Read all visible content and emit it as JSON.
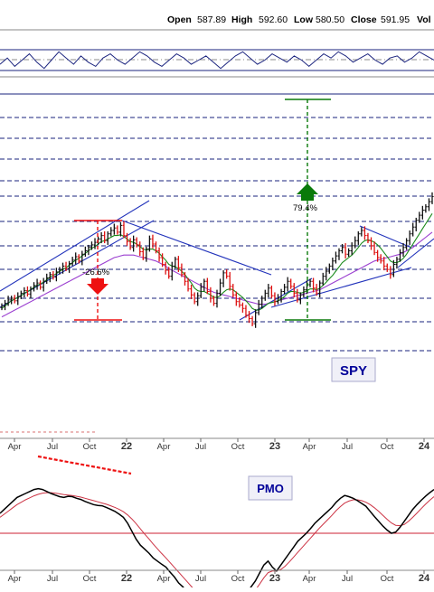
{
  "header": {
    "open_label": "Open",
    "open_value": "587.89",
    "high_label": "High",
    "high_value": "592.60",
    "low_label": "Low",
    "low_value": "580.50",
    "close_label": "Close",
    "close_value": "591.95",
    "volume_label": "Vol"
  },
  "colors": {
    "price_up": "#111111",
    "price_down": "#dd1111",
    "ma_fast": "#1a8a1a",
    "ma_slow": "#9b3fd0",
    "trendline": "#2233bb",
    "gridline": "#1a237e",
    "measure_red": "#ee1111",
    "measure_green": "#0a7a0a",
    "pmo_line": "#000000",
    "pmo_signal": "#cc3344",
    "label_box_bg": "#f0f0f8",
    "label_box_text": "#000099"
  },
  "chart_data": [
    {
      "type": "line",
      "panel": "indicator-top",
      "series": [
        {
          "values": [
            0.3,
            0.6,
            0.2,
            0.5,
            0.8,
            0.4,
            0.1,
            0.5,
            0.9,
            0.6,
            0.3,
            0.7,
            0.4,
            0.2,
            0.6,
            0.8,
            0.5,
            0.3,
            0.6,
            0.9,
            0.7,
            0.4,
            0.2,
            0.5,
            0.8,
            0.6,
            0.3,
            0.5,
            0.7,
            0.4,
            0.1,
            0.4,
            0.7,
            0.9,
            0.6,
            0.3,
            0.5,
            0.8,
            0.6,
            0.4,
            0.7,
            0.5,
            0.2,
            0.5,
            0.8,
            0.6,
            0.9,
            0.7,
            0.4,
            0.6,
            0.8,
            0.5,
            0.3,
            0.6,
            0.7,
            0.4,
            0.6,
            0.9,
            0.7,
            0.5
          ]
        }
      ],
      "grid": true
    },
    {
      "type": "candlestick",
      "panel": "price",
      "title": "SPY",
      "x_tick_labels": [
        "Apr",
        "Jul",
        "Oct",
        "22",
        "Apr",
        "Jul",
        "Oct",
        "23",
        "Apr",
        "Jul",
        "Oct",
        "24"
      ],
      "annotations": [
        "-26.6%",
        "79.4%"
      ],
      "series": [
        {
          "name": "price",
          "values": [
            383,
            386,
            390,
            392,
            389,
            394,
            398,
            401,
            397,
            403,
            407,
            410,
            405,
            412,
            416,
            420,
            417,
            423,
            426,
            430,
            427,
            433,
            437,
            441,
            436,
            444,
            448,
            452,
            455,
            458,
            462,
            466,
            460,
            468,
            472,
            475,
            470,
            478,
            466,
            459,
            452,
            461,
            455,
            447,
            440,
            450,
            462,
            456,
            448,
            440,
            432,
            425,
            418,
            430,
            438,
            428,
            420,
            412,
            403,
            396,
            388,
            395,
            405,
            412,
            400,
            392,
            386,
            398,
            410,
            422,
            418,
            406,
            396,
            388,
            384,
            380,
            372,
            368,
            362,
            375,
            385,
            392,
            398,
            404,
            395,
            388,
            392,
            400,
            405,
            412,
            406,
            398,
            390,
            396,
            402,
            408,
            412,
            404,
            398,
            410,
            418,
            424,
            430,
            436,
            442,
            448,
            452,
            444,
            448,
            454,
            460,
            468,
            472,
            466,
            460,
            454,
            446,
            440,
            436,
            430,
            426,
            420,
            432,
            438,
            446,
            452,
            460,
            468,
            476,
            484,
            490,
            496,
            500,
            506,
            512
          ]
        },
        {
          "name": "ma-50",
          "values": [
            380,
            383,
            386,
            389,
            391,
            393,
            395,
            398,
            400,
            402,
            405,
            407,
            409,
            411,
            414,
            417,
            419,
            421,
            424,
            426,
            428,
            431,
            434,
            437,
            439,
            442,
            445,
            448,
            451,
            453,
            456,
            459,
            460,
            462,
            464,
            466,
            466,
            467,
            465,
            462,
            459,
            458,
            456,
            453,
            450,
            449,
            450,
            450,
            448,
            445,
            441,
            437,
            432,
            430,
            429,
            427,
            424,
            420,
            415,
            410,
            404,
            401,
            400,
            400,
            398,
            396,
            393,
            393,
            395,
            399,
            402,
            403,
            402,
            399,
            396,
            393,
            389,
            385,
            380,
            378,
            378,
            380,
            383,
            386,
            387,
            388,
            389,
            391,
            394,
            398,
            400,
            400,
            399,
            398,
            399,
            401,
            403,
            403,
            402,
            404,
            407,
            411,
            415,
            419,
            424,
            429,
            434,
            437,
            440,
            443,
            447,
            452,
            457,
            460,
            461,
            460,
            458,
            455,
            451,
            446,
            441,
            436,
            434,
            434,
            436,
            439,
            444,
            450,
            456,
            462,
            468,
            474,
            480,
            486,
            492
          ]
        },
        {
          "name": "ma-200",
          "values": [
            370,
            372,
            374,
            376,
            378,
            380,
            382,
            384,
            386,
            388,
            390,
            392,
            394,
            396,
            398,
            400,
            402,
            404,
            406,
            408,
            410,
            412,
            414,
            416,
            418,
            420,
            422,
            424,
            426,
            428,
            430,
            432,
            434,
            436,
            438,
            440,
            441,
            442,
            443,
            443,
            443,
            443,
            442,
            441,
            440,
            439,
            438,
            437,
            436,
            434,
            432,
            430,
            427,
            425,
            423,
            421,
            419,
            417,
            415,
            413,
            411,
            409,
            407,
            405,
            403,
            401,
            399,
            398,
            397,
            396,
            395,
            394,
            393,
            392,
            391,
            390,
            389,
            388,
            387,
            386,
            385,
            385,
            385,
            386,
            387,
            388,
            389,
            390,
            391,
            392,
            393,
            394,
            395,
            396,
            397,
            398,
            399,
            400,
            401,
            402,
            404,
            406,
            408,
            410,
            412,
            414,
            416,
            418,
            420,
            422,
            424,
            426,
            428,
            430,
            432,
            434,
            436,
            437,
            438,
            439,
            440,
            441,
            442,
            443,
            444,
            446,
            448,
            450,
            452,
            455,
            458,
            461,
            464,
            467,
            470
          ]
        }
      ],
      "grid": true
    },
    {
      "type": "line",
      "panel": "pmo",
      "title": "PMO",
      "x_tick_labels": [
        "Apr",
        "Jul",
        "Oct",
        "22",
        "Apr",
        "Jul",
        "Oct",
        "23",
        "Apr",
        "Jul",
        "Oct",
        "24"
      ],
      "series": [
        {
          "name": "PMO",
          "values": [
            5,
            6,
            7,
            8,
            9,
            9.5,
            10,
            10.5,
            11,
            11.2,
            11,
            10.5,
            10,
            9.6,
            9.2,
            9,
            9.3,
            9.2,
            8.8,
            8.5,
            8,
            7.6,
            7.2,
            7,
            6.9,
            6.5,
            6,
            5.5,
            4.8,
            4,
            2.5,
            0.5,
            -1.5,
            -3,
            -4,
            -5,
            -6.2,
            -7,
            -7.8,
            -8.5,
            -9.8,
            -11,
            -12.5,
            -13.5,
            -15,
            -16,
            -17.5,
            -19,
            -19.8,
            -18.5,
            -17.2,
            -18.8,
            -20.5,
            -21.5,
            -20.8,
            -19.5,
            -18,
            -16.5,
            -15,
            -13.5,
            -12,
            -10,
            -8,
            -7,
            -8.5,
            -9.5,
            -8,
            -6.5,
            -5,
            -3.5,
            -2,
            -1,
            0,
            1.2,
            2.5,
            3.5,
            4.5,
            5.5,
            6.5,
            7.8,
            8.8,
            9.5,
            9.2,
            8.8,
            8.2,
            7.5,
            6.8,
            5.5,
            4.2,
            3,
            1.8,
            0.8,
            0,
            0.3,
            1.5,
            3,
            4.5,
            6,
            7.2,
            8.3,
            9.3,
            10.2,
            11
          ]
        },
        {
          "name": "signal",
          "values": [
            4,
            4.8,
            5.6,
            6.4,
            7.2,
            7.8,
            8.4,
            8.9,
            9.4,
            9.8,
            10.1,
            10.2,
            10.2,
            10.1,
            9.9,
            9.7,
            9.6,
            9.5,
            9.3,
            9.1,
            8.8,
            8.5,
            8.2,
            7.9,
            7.6,
            7.3,
            6.9,
            6.5,
            6,
            5.4,
            4.6,
            3.6,
            2.4,
            1.1,
            -0.2,
            -1.4,
            -2.7,
            -3.9,
            -5.1,
            -6.2,
            -7.4,
            -8.6,
            -9.8,
            -11,
            -12.2,
            -13.4,
            -14.6,
            -15.8,
            -16.8,
            -17.3,
            -17.6,
            -18,
            -18.6,
            -19.2,
            -19.4,
            -19.2,
            -18.6,
            -17.8,
            -16.8,
            -15.6,
            -14.3,
            -12.8,
            -11.2,
            -9.9,
            -9.5,
            -9.5,
            -9.1,
            -8.3,
            -7.2,
            -6,
            -4.8,
            -3.6,
            -2.4,
            -1.2,
            0,
            1.2,
            2.3,
            3.4,
            4.5,
            5.7,
            6.7,
            7.6,
            8.1,
            8.4,
            8.4,
            8.2,
            7.8,
            7.2,
            6.4,
            5.5,
            4.5,
            3.5,
            2.6,
            2,
            1.9,
            2.2,
            3,
            4,
            5.1,
            6.2,
            7.3,
            8.3,
            9.2
          ]
        }
      ],
      "grid": true
    }
  ]
}
